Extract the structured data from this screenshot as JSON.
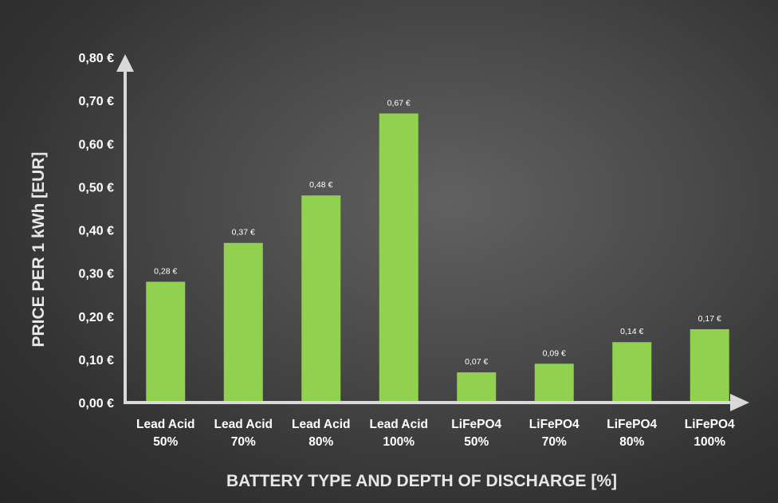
{
  "chart_data": {
    "type": "bar",
    "title": "",
    "xlabel": "BATTERY TYPE AND DEPTH OF DISCHARGE [%]",
    "ylabel": "PRICE PER 1 kWh [EUR]",
    "categories": [
      [
        "Lead Acid",
        "50%"
      ],
      [
        "Lead Acid",
        "70%"
      ],
      [
        "Lead Acid",
        "80%"
      ],
      [
        "Lead Acid",
        "100%"
      ],
      [
        "LiFePO4",
        "50%"
      ],
      [
        "LiFePO4",
        "70%"
      ],
      [
        "LiFePO4",
        "80%"
      ],
      [
        "LiFePO4",
        "100%"
      ]
    ],
    "values": [
      0.28,
      0.37,
      0.48,
      0.67,
      0.07,
      0.09,
      0.14,
      0.17
    ],
    "value_labels": [
      "0,28 €",
      "0,37 €",
      "0,48 €",
      "0,67 €",
      "0,07 €",
      "0,09 €",
      "0,14 €",
      "0,17 €"
    ],
    "ylim": [
      0,
      0.8
    ],
    "yticks": [
      {
        "value": 0.0,
        "label": "0,00 €"
      },
      {
        "value": 0.1,
        "label": "0,10 €"
      },
      {
        "value": 0.2,
        "label": "0,20 €"
      },
      {
        "value": 0.3,
        "label": "0,30 €"
      },
      {
        "value": 0.4,
        "label": "0,40 €"
      },
      {
        "value": 0.5,
        "label": "0,50 €"
      },
      {
        "value": 0.6,
        "label": "0,60 €"
      },
      {
        "value": 0.7,
        "label": "0,70 €"
      },
      {
        "value": 0.8,
        "label": "0,80 €"
      }
    ],
    "grid": false,
    "legend": "none",
    "colors": {
      "bar": "#92d050",
      "axis": "#d9d9d9",
      "text": "#ffffff",
      "axis_title": "#e8e8e8"
    }
  }
}
